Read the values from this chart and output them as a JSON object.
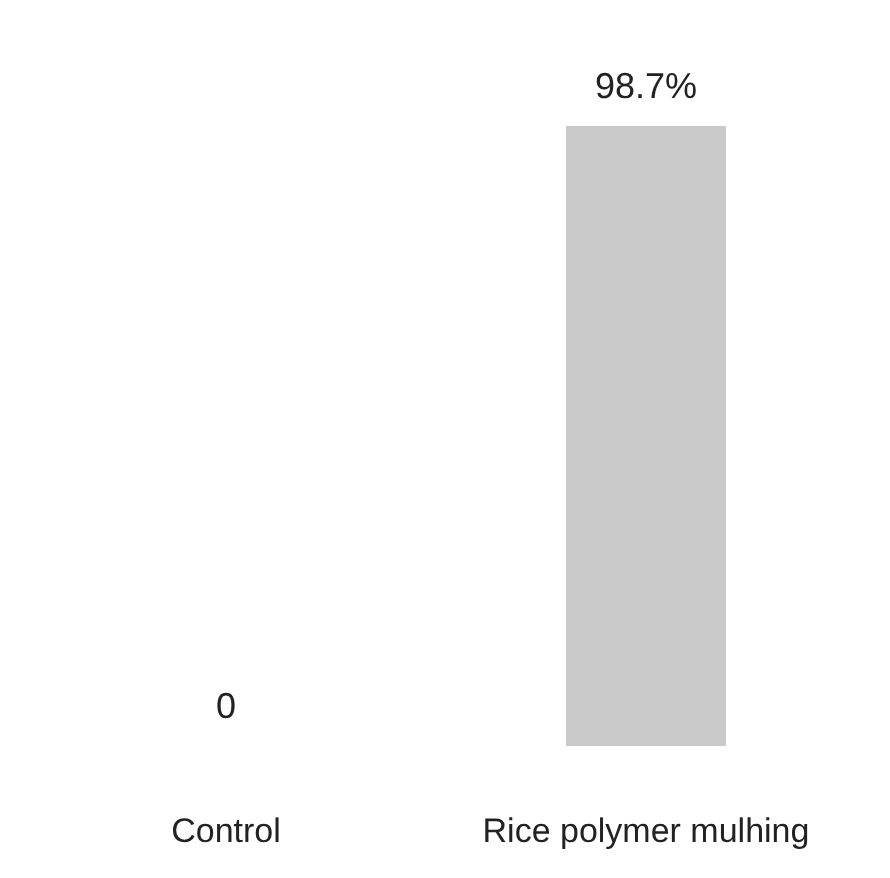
{
  "chart_data": {
    "type": "bar",
    "categories": [
      "Control",
      "Rice polymer mulhing"
    ],
    "values": [
      0,
      98.7
    ],
    "color": "#c9c9c9",
    "value_labels": [
      "0",
      "98.7%"
    ]
  }
}
